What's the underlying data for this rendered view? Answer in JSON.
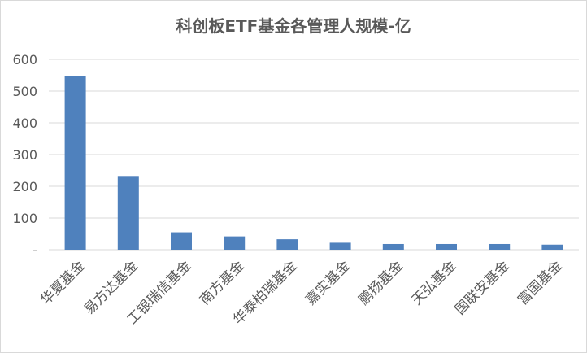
{
  "chart_data": {
    "type": "bar",
    "title": "科创板ETF基金各管理人规模-亿",
    "categories": [
      "华夏基金",
      "易方达基金",
      "工银瑞信基金",
      "南方基金",
      "华泰柏瑞基金",
      "嘉实基金",
      "鹏扬基金",
      "天弘基金",
      "国联安基金",
      "富国基金"
    ],
    "values": [
      547,
      230,
      55,
      42,
      33,
      22,
      18,
      18,
      18,
      16
    ],
    "ylim": [
      0,
      600
    ],
    "yticks": [
      0,
      100,
      200,
      300,
      400,
      500,
      600
    ],
    "ytick_labels": [
      "-",
      "100",
      "200",
      "300",
      "400",
      "500",
      "600"
    ],
    "bar_color": "#4f81bd",
    "grid_color": "#d9d9d9",
    "grid": true,
    "legend": "none"
  }
}
